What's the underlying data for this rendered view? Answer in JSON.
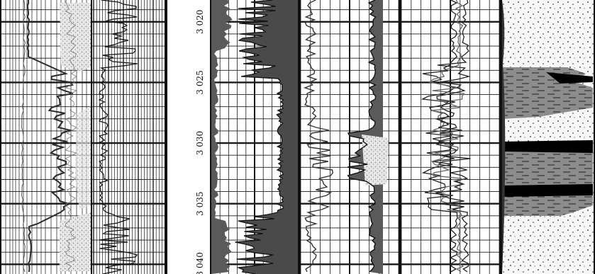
{
  "depth_axis": {
    "unit": "",
    "labels": [
      "3 020",
      "3 025",
      "3 030",
      "3 035",
      "3 040"
    ],
    "values": [
      3020,
      3025,
      3030,
      3035,
      3040
    ],
    "range": [
      3018.2,
      3040.8
    ]
  },
  "tracks": [
    {
      "name": "track-1",
      "content": "two curves, grid, stippled sand shading",
      "gridlines": "log"
    },
    {
      "name": "track-2",
      "content": "dense vertical hatching with spiky trace",
      "gridlines": "dense"
    },
    {
      "name": "track-3",
      "content": "filled trace on left side, shaded peaks",
      "gridlines": "linear"
    },
    {
      "name": "track-4",
      "content": "three overlapping curves with shaded fills",
      "gridlines": "linear"
    },
    {
      "name": "track-5",
      "content": "multiple wiggly curves",
      "gridlines": "linear"
    },
    {
      "name": "lithology",
      "content": "sandstone (dots) and shale (dashed) with coal (black) beds"
    }
  ],
  "colors": {
    "grid": "#1a1a1a",
    "curve": "#2b2b2b",
    "fill_dark": "#5a5a5a",
    "fill_light": "#c8c8c8",
    "shale": "#8a8a8a",
    "coal": "#000000",
    "sand_bg": "#f4f4f4"
  }
}
